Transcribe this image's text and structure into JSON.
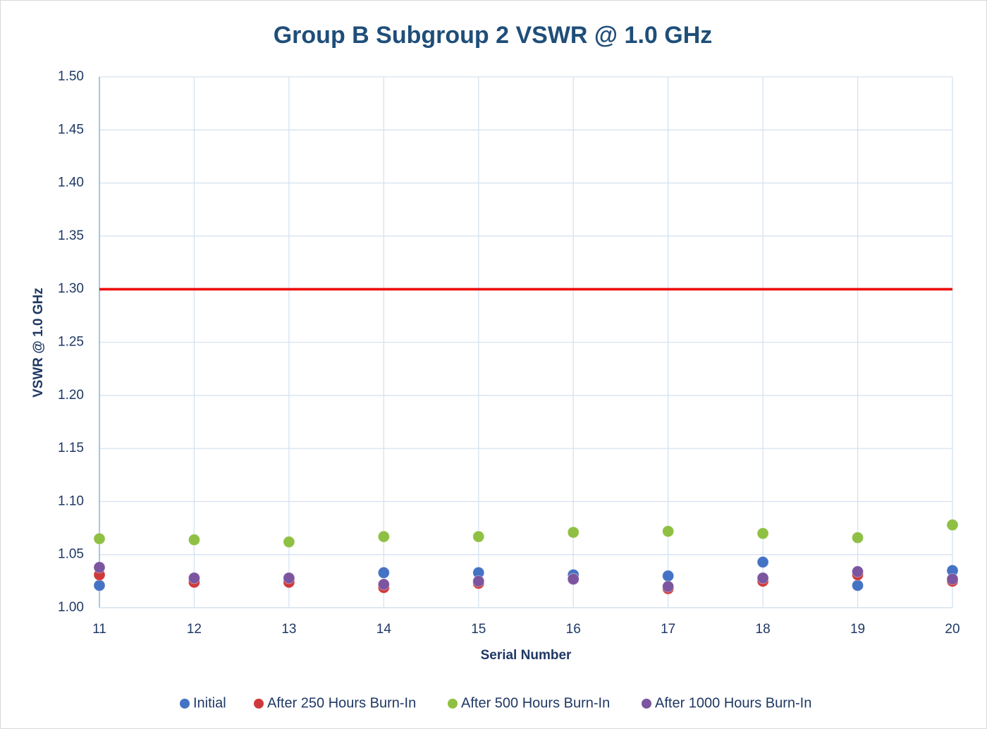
{
  "chart_data": {
    "type": "scatter",
    "title": "Group B Subgroup 2 VSWR @ 1.0 GHz",
    "x_label": "Serial Number",
    "y_label": "VSWR @ 1.0 GHz",
    "x": [
      11,
      12,
      13,
      14,
      15,
      16,
      17,
      18,
      19,
      20
    ],
    "series": [
      {
        "name": "Initial",
        "color": "#4472c4",
        "values": [
          1.021,
          1.025,
          1.025,
          1.033,
          1.033,
          1.031,
          1.03,
          1.043,
          1.021,
          1.035
        ]
      },
      {
        "name": "After 250 Hours Burn-In",
        "color": "#d0393b",
        "values": [
          1.031,
          1.024,
          1.024,
          1.019,
          1.023,
          1.027,
          1.018,
          1.025,
          1.031,
          1.025
        ]
      },
      {
        "name": "After 500 Hours Burn-In",
        "color": "#8fc043",
        "values": [
          1.065,
          1.064,
          1.062,
          1.067,
          1.067,
          1.071,
          1.072,
          1.07,
          1.066,
          1.078
        ]
      },
      {
        "name": "After 1000 Hours Burn-In",
        "color": "#7b559f",
        "values": [
          1.038,
          1.028,
          1.028,
          1.022,
          1.025,
          1.027,
          1.02,
          1.028,
          1.034,
          1.027
        ]
      }
    ],
    "threshold": {
      "value": 1.3,
      "color": "#ee0000"
    },
    "xlim": [
      11,
      20
    ],
    "xticks": [
      11,
      12,
      13,
      14,
      15,
      16,
      17,
      18,
      19,
      20
    ],
    "ylim": [
      1.0,
      1.5
    ],
    "yticks": [
      {
        "value": 1.0,
        "label": "1.00"
      },
      1.05,
      {
        "value": 1.1,
        "label": "1.10"
      },
      1.15,
      {
        "value": 1.2,
        "label": "1.20"
      },
      1.25,
      {
        "value": 1.3,
        "label": "1.30"
      },
      1.35,
      {
        "value": 1.4,
        "label": "1.40"
      },
      1.45,
      {
        "value": 1.5,
        "label": "1.50"
      }
    ],
    "grid": true,
    "legend": "bottom"
  }
}
